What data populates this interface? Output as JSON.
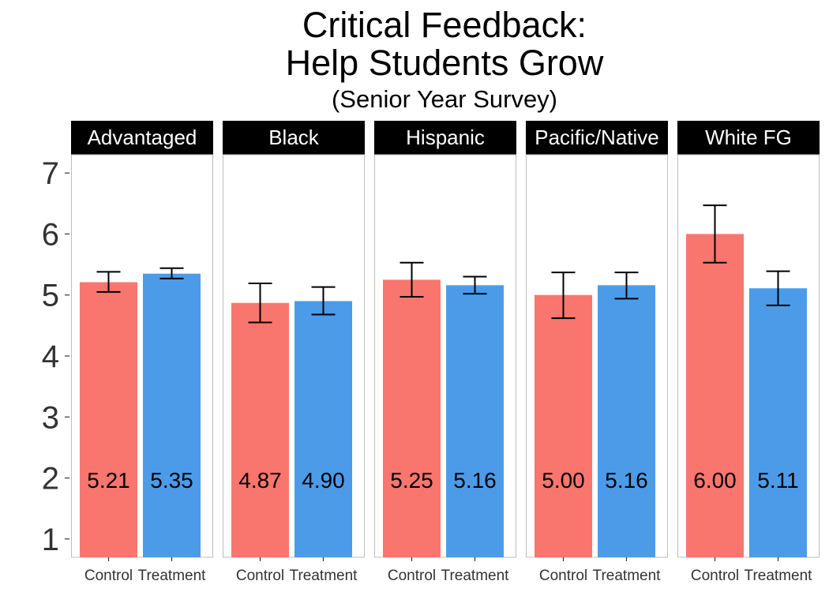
{
  "title_lines": [
    "Critical Feedback:",
    "Help Students Grow",
    "(Senior Year Survey)"
  ],
  "chart_data": {
    "type": "bar",
    "title": "Critical Feedback: Help Students Grow (Senior Year Survey)",
    "panels": [
      "Advantaged",
      "Black",
      "Hispanic",
      "Pacific/Native",
      "White FG"
    ],
    "categories": [
      "Control",
      "Treatment"
    ],
    "values": [
      [
        5.21,
        5.35
      ],
      [
        4.87,
        4.9
      ],
      [
        5.25,
        5.16
      ],
      [
        5.0,
        5.16
      ],
      [
        6.0,
        5.11
      ]
    ],
    "value_labels": [
      [
        "5.21",
        "5.35"
      ],
      [
        "4.87",
        "4.90"
      ],
      [
        "5.25",
        "5.16"
      ],
      [
        "5.00",
        "5.16"
      ],
      [
        "6.00",
        "5.11"
      ]
    ],
    "error_low": [
      [
        5.05,
        5.27
      ],
      [
        4.55,
        4.68
      ],
      [
        4.97,
        5.02
      ],
      [
        4.62,
        4.94
      ],
      [
        5.53,
        4.83
      ]
    ],
    "error_high": [
      [
        5.38,
        5.44
      ],
      [
        5.19,
        5.13
      ],
      [
        5.53,
        5.3
      ],
      [
        5.37,
        5.37
      ],
      [
        6.47,
        5.39
      ]
    ],
    "yticks": [
      1,
      2,
      3,
      4,
      5,
      6,
      7
    ],
    "ylim": [
      0.7,
      7.3
    ],
    "colors": {
      "Control": "#F8766D",
      "Treatment": "#4C9BE8"
    },
    "xlabel": "",
    "ylabel": "",
    "legend": "none",
    "grid": false
  }
}
